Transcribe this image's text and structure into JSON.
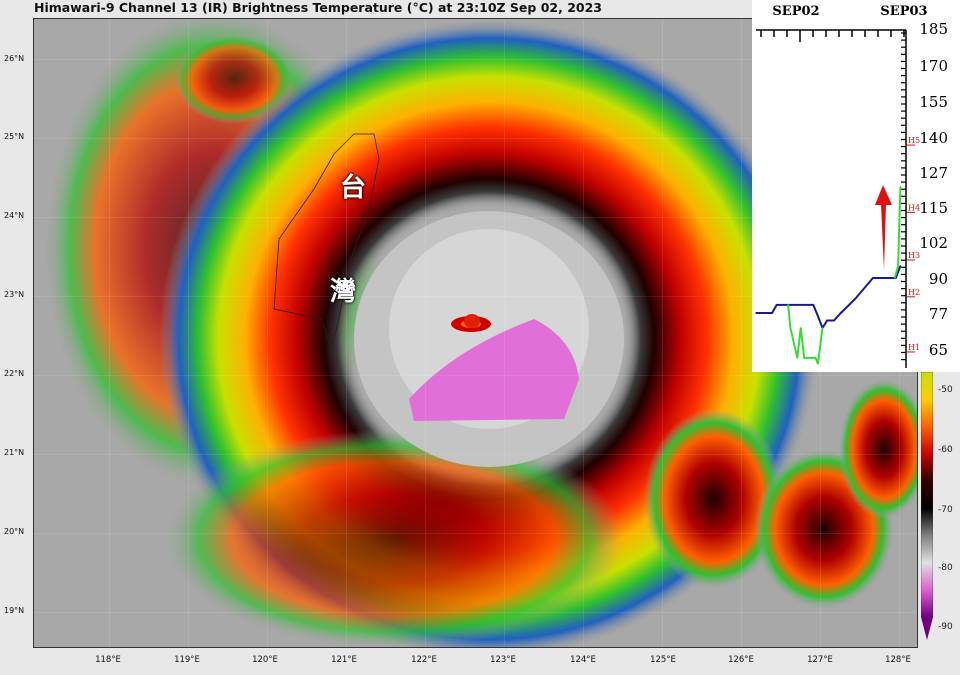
{
  "title": "Himawari-9 Channel 13 (IR) Brightness Temperature (°C) at 23:10Z Sep 02, 2023",
  "map": {
    "lat_labels": [
      "26°N",
      "25°N",
      "24°N",
      "23°N",
      "22°N",
      "21°N",
      "20°N",
      "19°N"
    ],
    "lon_labels": [
      "118°E",
      "119°E",
      "120°E",
      "121°E",
      "122°E",
      "123°E",
      "124°E",
      "125°E",
      "126°E",
      "127°E",
      "128°E"
    ],
    "annotations": [
      "台",
      "灣"
    ]
  },
  "colorbar": {
    "labels": [
      "-50",
      "-60",
      "-70",
      "-80",
      "-90"
    ],
    "colors": [
      "#c8e000",
      "#ffd000",
      "#ff6000",
      "#d00000",
      "#300000",
      "#000000",
      "#808080",
      "#e0e0e0",
      "#e060d0",
      "#700080"
    ]
  },
  "chart_data": {
    "type": "line",
    "x_tick_labels": [
      "SEP02",
      "SEP03"
    ],
    "y_tick_labels": [
      "185",
      "170",
      "155",
      "140",
      "127",
      "115",
      "102",
      "90",
      "77",
      "65"
    ],
    "category_labels": [
      "H1",
      "H2",
      "H3",
      "H4",
      "H5"
    ],
    "category_values": [
      64,
      83,
      96,
      113,
      137
    ],
    "series": [
      {
        "color": "#1a1a8c",
        "points": [
          [
            "2023-09-01T15:30Z",
            77
          ],
          [
            "2023-09-01T19:00Z",
            77
          ],
          [
            "2023-09-01T20:00Z",
            80
          ],
          [
            "2023-09-02T04:00Z",
            80
          ],
          [
            "2023-09-02T05:00Z",
            76
          ],
          [
            "2023-09-02T06:00Z",
            72
          ],
          [
            "2023-09-02T07:00Z",
            74.5
          ],
          [
            "2023-09-02T08:30Z",
            74.5
          ],
          [
            "2023-09-02T10:00Z",
            77
          ],
          [
            "2023-09-02T13:00Z",
            82
          ],
          [
            "2023-09-02T14:30Z",
            85
          ],
          [
            "2023-09-02T17:00Z",
            90
          ],
          [
            "2023-09-02T22:00Z",
            90
          ],
          [
            "2023-09-02T22:30Z",
            92
          ],
          [
            "2023-09-02T23:00Z",
            94
          ]
        ]
      },
      {
        "color": "#33dd33",
        "points": [
          [
            "2023-09-01T22:30Z",
            80
          ],
          [
            "2023-09-01T23:00Z",
            72
          ],
          [
            "2023-09-02T00:30Z",
            62
          ],
          [
            "2023-09-02T01:15Z",
            72
          ],
          [
            "2023-09-02T02:00Z",
            62
          ],
          [
            "2023-09-02T04:30Z",
            62
          ],
          [
            "2023-09-02T05:00Z",
            60
          ],
          [
            "2023-09-02T06:00Z",
            72
          ]
        ]
      },
      {
        "color": "#33dd33",
        "points": [
          [
            "2023-09-02T21:45Z",
            90
          ],
          [
            "2023-09-02T22:30Z",
            94
          ],
          [
            "2023-09-02T23:00Z",
            122
          ]
        ]
      }
    ],
    "arrow_color": "#e01010"
  }
}
